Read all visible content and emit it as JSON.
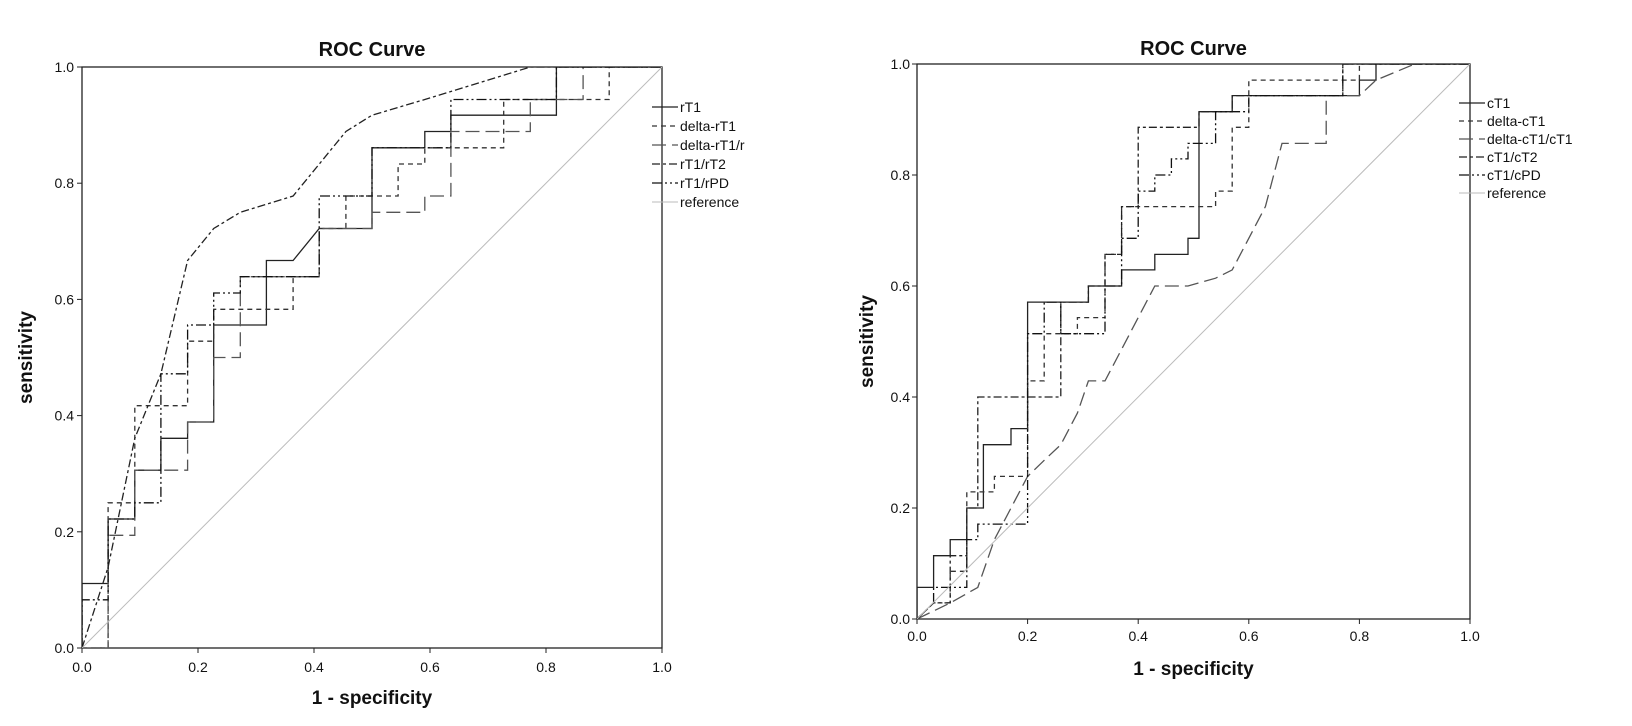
{
  "chart_data": [
    {
      "type": "line",
      "title": "ROC Curve",
      "xlabel": "1 - specificity",
      "ylabel": "sensitivity",
      "xlim": [
        0,
        1
      ],
      "ylim": [
        0,
        1
      ],
      "xticks": [
        "0.0",
        "0.2",
        "0.4",
        "0.6",
        "0.8",
        "1.0"
      ],
      "yticks": [
        "0.0",
        "0.2",
        "0.4",
        "0.6",
        "0.8",
        "1.0"
      ],
      "grid": false,
      "legend_position": "right",
      "series": [
        {
          "name": "rT1",
          "dash": "",
          "color": "#222222",
          "x": [
            0,
            0,
            0.045,
            0.045,
            0.091,
            0.091,
            0.136,
            0.136,
            0.182,
            0.182,
            0.227,
            0.227,
            0.318,
            0.318,
            0.364,
            0.409,
            0.5,
            0.5,
            0.591,
            0.591,
            0.636,
            0.636,
            0.818,
            0.818,
            1
          ],
          "y": [
            0,
            0.111,
            0.111,
            0.222,
            0.222,
            0.306,
            0.306,
            0.361,
            0.361,
            0.389,
            0.389,
            0.556,
            0.556,
            0.667,
            0.667,
            0.722,
            0.722,
            0.861,
            0.861,
            0.889,
            0.889,
            0.917,
            0.917,
            1,
            1
          ]
        },
        {
          "name": "delta-rT1",
          "dash": "5,4",
          "color": "#333333",
          "x": [
            0,
            0.045,
            0.045,
            0.091,
            0.091,
            0.182,
            0.182,
            0.227,
            0.227,
            0.364,
            0.364,
            0.409,
            0.409,
            0.455,
            0.455,
            0.545,
            0.545,
            0.591,
            0.591,
            0.727,
            0.727,
            0.909,
            0.909,
            1
          ],
          "y": [
            0,
            0,
            0.25,
            0.25,
            0.417,
            0.417,
            0.528,
            0.528,
            0.583,
            0.583,
            0.639,
            0.639,
            0.722,
            0.722,
            0.778,
            0.778,
            0.833,
            0.833,
            0.861,
            0.861,
            0.944,
            0.944,
            1,
            1
          ]
        },
        {
          "name": "delta-rT1/r",
          "dash": "14,6",
          "color": "#555555",
          "x": [
            0,
            0.045,
            0.045,
            0.091,
            0.091,
            0.182,
            0.182,
            0.227,
            0.227,
            0.273,
            0.273,
            0.409,
            0.409,
            0.5,
            0.5,
            0.591,
            0.591,
            0.636,
            0.636,
            0.773,
            0.773,
            0.864,
            0.864,
            1
          ],
          "y": [
            0,
            0,
            0.194,
            0.194,
            0.306,
            0.306,
            0.389,
            0.389,
            0.5,
            0.5,
            0.639,
            0.639,
            0.722,
            0.722,
            0.75,
            0.75,
            0.778,
            0.778,
            0.889,
            0.889,
            0.944,
            0.944,
            1,
            1
          ]
        },
        {
          "name": "rT1/rT2",
          "dash": "8,3,3,3",
          "color": "#222222",
          "x": [
            0,
            0.045,
            0.045,
            0.091,
            0.091,
            0.136,
            0.136,
            0.182,
            0.182,
            0.227,
            0.227,
            0.273,
            0.273,
            0.364,
            0.364,
            0.455,
            0.455,
            0.5,
            0.5,
            0.591,
            0.591,
            0.773,
            0.773,
            1
          ],
          "y": [
            0,
            0.139,
            0.139,
            0.361,
            0.361,
            0.472,
            0.472,
            0.667,
            0.667,
            0.722,
            0.722,
            0.75,
            0.75,
            0.778,
            0.778,
            0.889,
            0.889,
            0.917,
            0.917,
            0.944,
            0.944,
            1,
            1,
            1
          ]
        },
        {
          "name": "rT1/rPD",
          "dash": "10,3,2,3,2,3",
          "color": "#111111",
          "x": [
            0,
            0,
            0.045,
            0.045,
            0.091,
            0.091,
            0.136,
            0.136,
            0.182,
            0.182,
            0.227,
            0.227,
            0.273,
            0.273,
            0.318,
            0.318,
            0.409,
            0.409,
            0.5,
            0.5,
            0.636,
            0.636,
            0.818,
            0.818,
            1
          ],
          "y": [
            0,
            0.083,
            0.083,
            0.222,
            0.222,
            0.25,
            0.25,
            0.472,
            0.472,
            0.556,
            0.556,
            0.611,
            0.611,
            0.639,
            0.639,
            0.639,
            0.639,
            0.778,
            0.778,
            0.861,
            0.861,
            0.944,
            0.944,
            1,
            1
          ]
        },
        {
          "name": "reference",
          "dash": "",
          "color": "#bbbbbb",
          "x": [
            0,
            1
          ],
          "y": [
            0,
            1
          ]
        }
      ]
    },
    {
      "type": "line",
      "title": "ROC Curve",
      "xlabel": "1 - specificity",
      "ylabel": "sensitivity",
      "xlim": [
        0,
        1
      ],
      "ylim": [
        0,
        1
      ],
      "xticks": [
        "0.0",
        "0.2",
        "0.4",
        "0.6",
        "0.8",
        "1.0"
      ],
      "yticks": [
        "0.0",
        "0.2",
        "0.4",
        "0.6",
        "0.8",
        "1.0"
      ],
      "grid": false,
      "legend_position": "right",
      "series": [
        {
          "name": "cT1",
          "dash": "",
          "color": "#222222",
          "x": [
            0,
            0,
            0.03,
            0.03,
            0.06,
            0.06,
            0.09,
            0.09,
            0.12,
            0.12,
            0.17,
            0.17,
            0.2,
            0.2,
            0.26,
            0.26,
            0.31,
            0.31,
            0.37,
            0.37,
            0.43,
            0.43,
            0.49,
            0.49,
            0.51,
            0.51,
            0.57,
            0.57,
            0.8,
            0.8,
            0.83,
            0.83,
            1
          ],
          "y": [
            0,
            0.057,
            0.057,
            0.114,
            0.114,
            0.143,
            0.143,
            0.2,
            0.2,
            0.314,
            0.314,
            0.343,
            0.343,
            0.571,
            0.571,
            0.571,
            0.571,
            0.6,
            0.6,
            0.629,
            0.629,
            0.657,
            0.657,
            0.686,
            0.686,
            0.914,
            0.914,
            0.943,
            0.943,
            0.971,
            0.971,
            1,
            1
          ]
        },
        {
          "name": "delta-cT1",
          "dash": "5,4",
          "color": "#333333",
          "x": [
            0,
            0.03,
            0.06,
            0.06,
            0.09,
            0.09,
            0.14,
            0.14,
            0.2,
            0.2,
            0.23,
            0.23,
            0.29,
            0.29,
            0.34,
            0.34,
            0.37,
            0.37,
            0.54,
            0.54,
            0.57,
            0.57,
            0.6,
            0.6,
            0.8,
            0.8,
            0.83,
            0.83,
            1
          ],
          "y": [
            0,
            0.029,
            0.029,
            0.086,
            0.086,
            0.229,
            0.229,
            0.257,
            0.257,
            0.429,
            0.429,
            0.514,
            0.514,
            0.543,
            0.543,
            0.657,
            0.657,
            0.743,
            0.743,
            0.771,
            0.771,
            0.886,
            0.886,
            0.971,
            0.971,
            1,
            1,
            1,
            1
          ]
        },
        {
          "name": "delta-cT1/cT1",
          "dash": "14,6",
          "color": "#555555",
          "x": [
            0,
            0.06,
            0.06,
            0.11,
            0.14,
            0.17,
            0.2,
            0.23,
            0.26,
            0.29,
            0.31,
            0.34,
            0.37,
            0.4,
            0.43,
            0.49,
            0.54,
            0.57,
            0.6,
            0.63,
            0.66,
            0.66,
            0.71,
            0.74,
            0.74,
            0.8,
            0.83,
            0.9,
            1
          ],
          "y": [
            0,
            0.029,
            0.029,
            0.057,
            0.143,
            0.2,
            0.257,
            0.286,
            0.314,
            0.371,
            0.429,
            0.429,
            0.486,
            0.543,
            0.6,
            0.6,
            0.614,
            0.629,
            0.686,
            0.743,
            0.857,
            0.857,
            0.857,
            0.857,
            0.943,
            0.943,
            0.971,
            1,
            1
          ]
        },
        {
          "name": "cT1/cT2",
          "dash": "8,3,3,3",
          "color": "#222222",
          "x": [
            0,
            0.03,
            0.06,
            0.06,
            0.09,
            0.09,
            0.11,
            0.11,
            0.2,
            0.2,
            0.26,
            0.26,
            0.31,
            0.31,
            0.34,
            0.34,
            0.37,
            0.37,
            0.4,
            0.4,
            0.43,
            0.43,
            0.51,
            0.51,
            0.57,
            0.57,
            0.77,
            0.77,
            1
          ],
          "y": [
            0,
            0.029,
            0.029,
            0.114,
            0.114,
            0.2,
            0.2,
            0.4,
            0.4,
            0.4,
            0.4,
            0.571,
            0.571,
            0.6,
            0.6,
            0.657,
            0.657,
            0.743,
            0.743,
            0.886,
            0.886,
            0.886,
            0.886,
            0.914,
            0.914,
            0.943,
            0.943,
            1,
            1
          ]
        },
        {
          "name": "cT1/cPD",
          "dash": "10,3,2,3,2,3",
          "color": "#111111",
          "x": [
            0,
            0.03,
            0.03,
            0.09,
            0.09,
            0.11,
            0.11,
            0.2,
            0.2,
            0.23,
            0.23,
            0.26,
            0.26,
            0.34,
            0.34,
            0.37,
            0.37,
            0.4,
            0.4,
            0.43,
            0.43,
            0.46,
            0.46,
            0.49,
            0.49,
            0.54,
            0.54,
            0.6,
            0.6,
            0.77,
            0.77,
            1
          ],
          "y": [
            0,
            0.029,
            0.057,
            0.057,
            0.143,
            0.143,
            0.171,
            0.171,
            0.514,
            0.514,
            0.571,
            0.571,
            0.514,
            0.514,
            0.6,
            0.6,
            0.686,
            0.686,
            0.771,
            0.771,
            0.8,
            0.8,
            0.829,
            0.829,
            0.857,
            0.857,
            0.914,
            0.914,
            0.943,
            0.943,
            1,
            1
          ]
        },
        {
          "name": "reference",
          "dash": "",
          "color": "#bbbbbb",
          "x": [
            0,
            1
          ],
          "y": [
            0,
            1
          ]
        }
      ]
    }
  ]
}
